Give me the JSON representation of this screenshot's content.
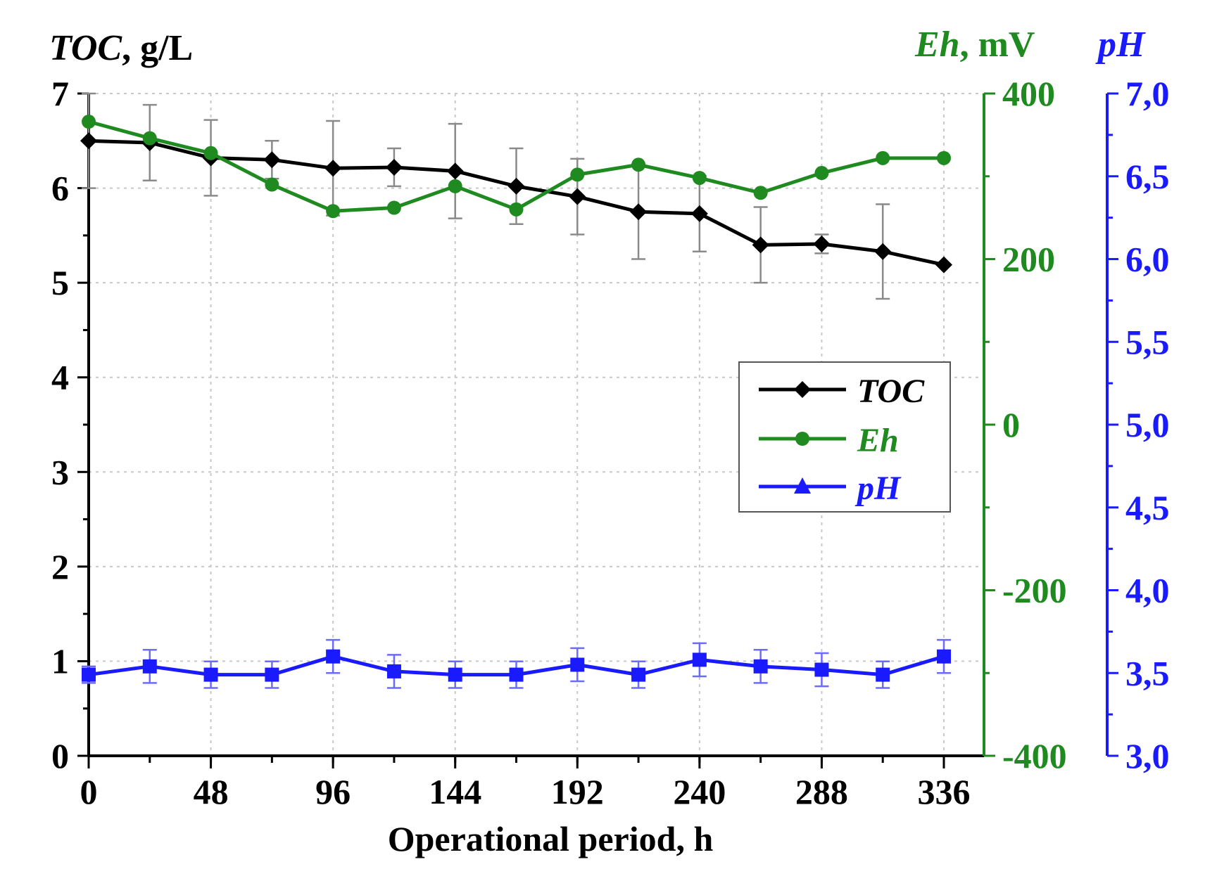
{
  "chart_data": {
    "type": "line",
    "xlabel": "Operational period, h",
    "x_ticks": [
      0,
      48,
      96,
      144,
      192,
      240,
      288,
      336
    ],
    "xlim": [
      0,
      336
    ],
    "x": [
      0,
      24,
      48,
      72,
      96,
      120,
      144,
      168,
      192,
      216,
      240,
      264,
      288,
      312,
      336
    ],
    "axes": {
      "left": {
        "title_var": "TOC",
        "title_unit": ", g/L",
        "ylim": [
          0,
          7
        ],
        "ticks": [
          "0",
          "1",
          "2",
          "3",
          "4",
          "5",
          "6",
          "7"
        ],
        "tick_values": [
          0,
          1,
          2,
          3,
          4,
          5,
          6,
          7
        ],
        "color": "#000000"
      },
      "right1": {
        "title_var": "Eh",
        "title_unit": ", mV",
        "ylim": [
          -400,
          400
        ],
        "ticks": [
          "-400",
          "-200",
          "0",
          "200",
          "400"
        ],
        "tick_values": [
          -400,
          -200,
          0,
          200,
          400
        ],
        "color": "#1f8a1f"
      },
      "right2": {
        "title_var": "pH",
        "title_unit": "",
        "ylim": [
          3.0,
          7.0
        ],
        "ticks": [
          "3,0",
          "3,5",
          "4,0",
          "4,5",
          "5,0",
          "5,5",
          "6,0",
          "6,5",
          "7,0"
        ],
        "tick_values": [
          3.0,
          3.5,
          4.0,
          4.5,
          5.0,
          5.5,
          6.0,
          6.5,
          7.0
        ],
        "color": "#1a1aff"
      }
    },
    "series": [
      {
        "name": "TOC",
        "axis": "left",
        "marker": "diamond",
        "color": "#000000",
        "values": [
          6.5,
          6.48,
          6.32,
          6.3,
          6.21,
          6.22,
          6.18,
          6.02,
          5.91,
          5.75,
          5.73,
          5.4,
          5.41,
          5.33,
          5.19
        ],
        "errors": [
          0.5,
          0.4,
          0.4,
          0.2,
          0.5,
          0.2,
          0.5,
          0.4,
          0.4,
          0.5,
          0.4,
          0.4,
          0.1,
          0.5,
          0.0
        ]
      },
      {
        "name": "Eh",
        "axis": "right1",
        "marker": "circle",
        "color": "#1f8a1f",
        "values": [
          366,
          346,
          328,
          290,
          258,
          262,
          288,
          260,
          302,
          314,
          298,
          280,
          304,
          322,
          322
        ],
        "errors": [
          0,
          0,
          0,
          0,
          0,
          0,
          0,
          0,
          0,
          0,
          0,
          0,
          0,
          0,
          0
        ]
      },
      {
        "name": "pH",
        "axis": "right2",
        "marker": "square",
        "color": "#1a1aff",
        "values": [
          3.49,
          3.54,
          3.49,
          3.49,
          3.6,
          3.51,
          3.49,
          3.49,
          3.55,
          3.49,
          3.58,
          3.54,
          3.52,
          3.49,
          3.6
        ],
        "errors": [
          0.05,
          0.1,
          0.08,
          0.08,
          0.1,
          0.1,
          0.08,
          0.08,
          0.1,
          0.08,
          0.1,
          0.1,
          0.1,
          0.08,
          0.1
        ]
      }
    ],
    "legend": {
      "position": "center-right",
      "entries": [
        "TOC",
        "Eh",
        "pH"
      ]
    },
    "grid": true
  }
}
